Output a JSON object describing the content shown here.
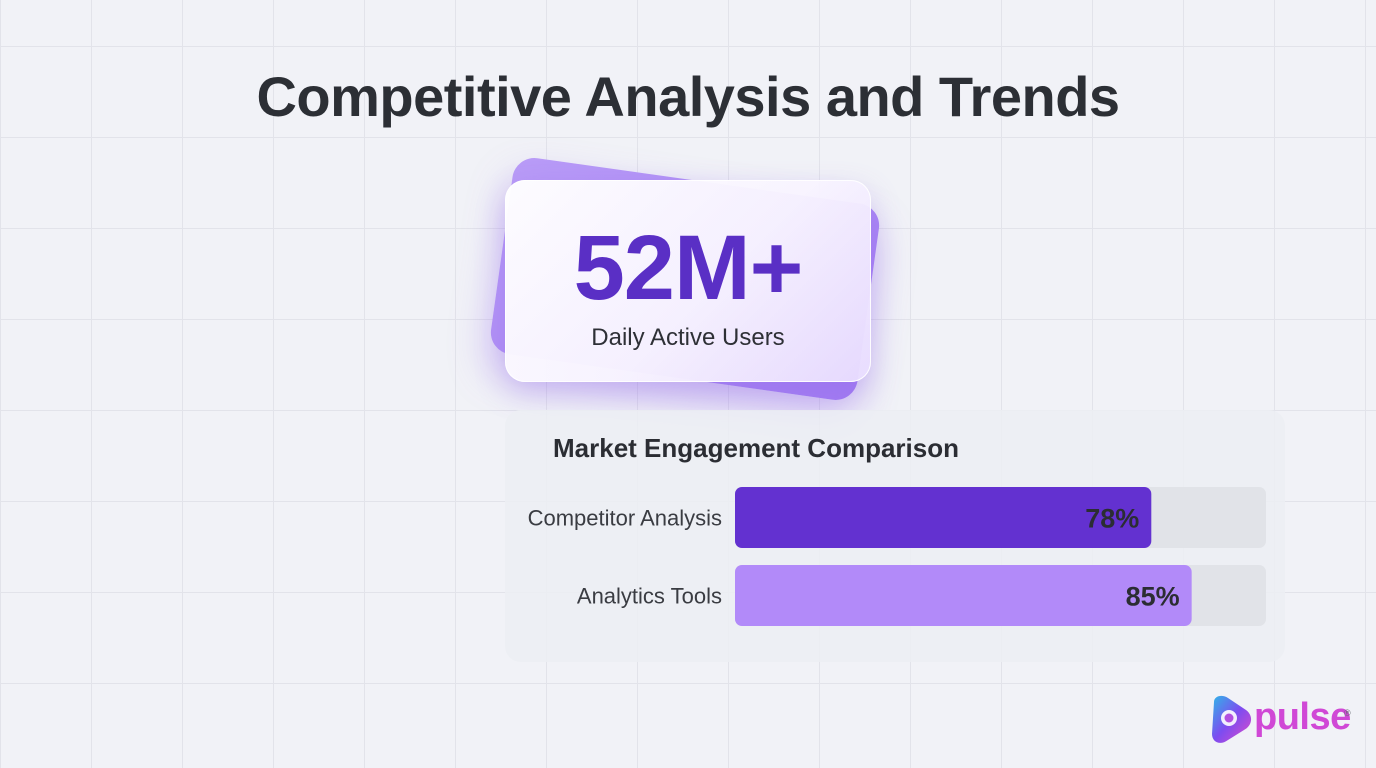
{
  "title": "Competitive Analysis and Trends",
  "stat": {
    "value": "52M+",
    "label": "Daily Active Users"
  },
  "chart_data": {
    "type": "bar",
    "orientation": "horizontal",
    "title": "Market Engagement Comparison",
    "categories": [
      "Competitor Analysis",
      "Analytics Tools"
    ],
    "values": [
      78,
      85
    ],
    "value_labels": [
      "78%",
      "85%"
    ],
    "xlim": [
      0,
      100
    ],
    "colors": [
      "#6331d0",
      "#b28af9"
    ],
    "track_color": "#e1e3e8",
    "grid": false,
    "legend": "none"
  },
  "logo": {
    "text": "pulse",
    "registered": "®"
  },
  "colors": {
    "accent": "#5a2fc5",
    "title": "#2c2f35",
    "logo": "#d048d6"
  }
}
